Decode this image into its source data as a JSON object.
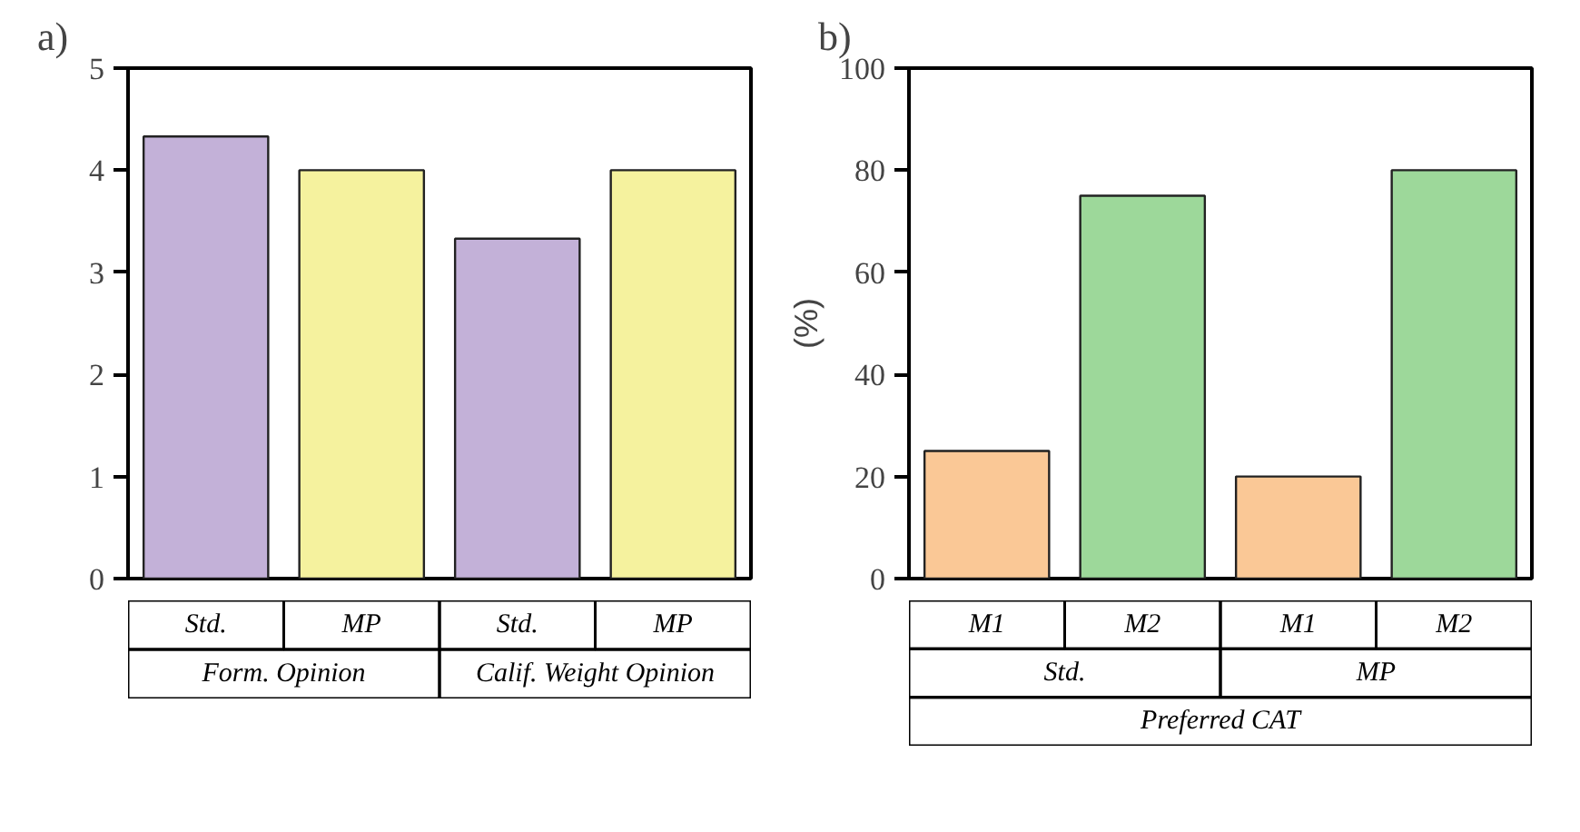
{
  "chart_data": [
    {
      "type": "bar",
      "title": "a)",
      "categories": [
        "Std.",
        "MP",
        "Std.",
        "MP"
      ],
      "values": [
        4.33,
        4.0,
        3.33,
        4.0
      ],
      "colors": [
        "#c3b1d8",
        "#f5f29e",
        "#c3b1d8",
        "#f5f29e"
      ],
      "ylim": [
        0,
        5
      ],
      "yticks": [
        0,
        1,
        2,
        3,
        4,
        5
      ],
      "grid": false,
      "annotations": [
        "Form. Opinion",
        "Calif. Weight Opinion"
      ]
    },
    {
      "type": "bar",
      "title": "b)",
      "ylabel": "(%)",
      "xlabel": "Preferred CAT",
      "categories": [
        "M1",
        "M2",
        "M1",
        "M2"
      ],
      "values": [
        25,
        75,
        20,
        80
      ],
      "colors": [
        "#fac896",
        "#9dd89a",
        "#fac896",
        "#9dd89a"
      ],
      "ylim": [
        0,
        100
      ],
      "yticks": [
        0,
        20,
        40,
        60,
        80,
        100
      ],
      "grid": false,
      "annotations": [
        "Std.",
        "MP"
      ]
    }
  ]
}
